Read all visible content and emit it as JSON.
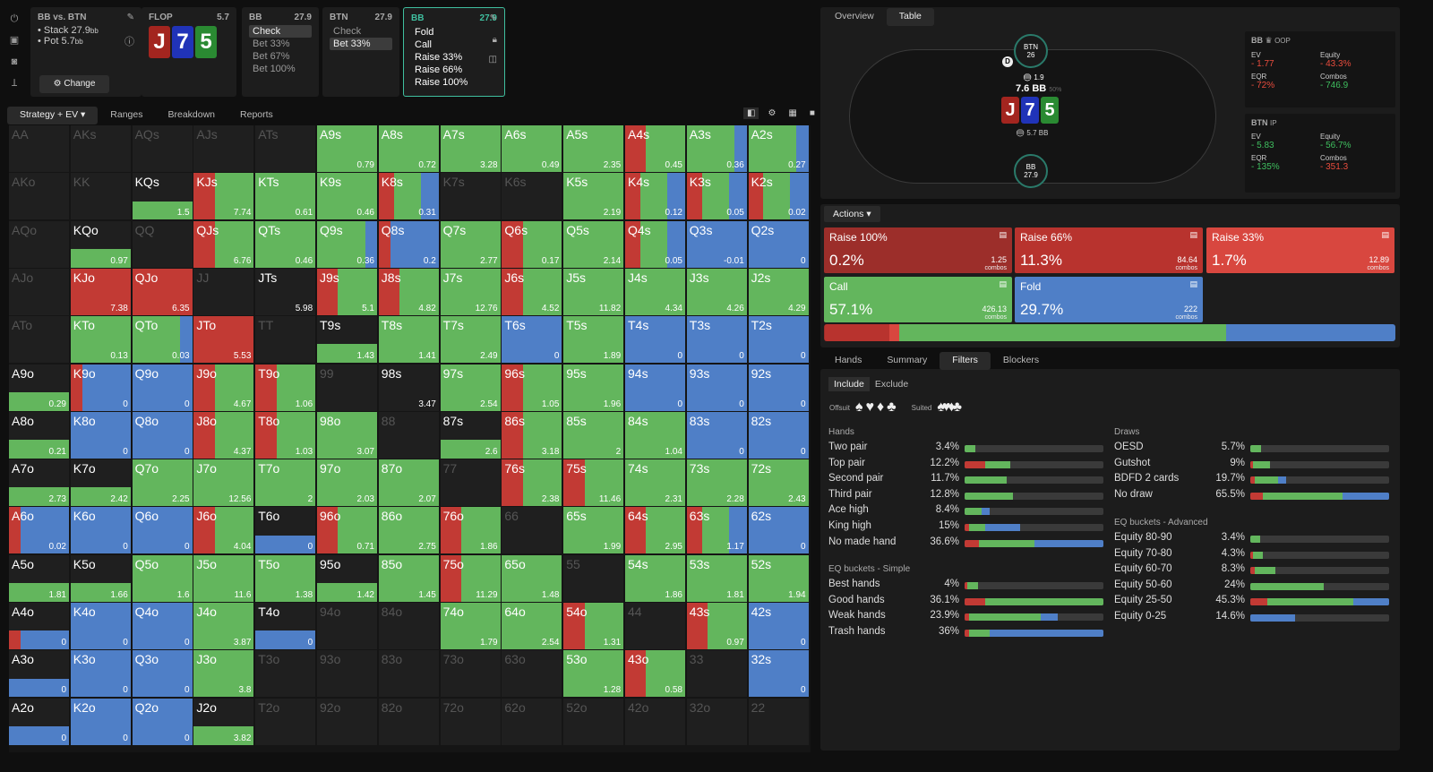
{
  "colors": {
    "raise": "#c23a34",
    "raise2": "#d8473f",
    "call": "#63b65d",
    "fold": "#4f7fc7",
    "check": "#63b65d"
  },
  "sidebar": {
    "icons": [
      "power-icon",
      "save-icon",
      "gamepad-icon",
      "text-icon"
    ]
  },
  "spot": {
    "title": "BB vs. BTN",
    "stack": "Stack 27.9",
    "pot": "Pot 5.7",
    "unit": "bb",
    "change": "Change"
  },
  "flop": {
    "label": "FLOP",
    "value": "5.7",
    "cards": [
      {
        "rank": "J",
        "suit": "red"
      },
      {
        "rank": "7",
        "suit": "blue"
      },
      {
        "rank": "5",
        "suit": "green"
      }
    ]
  },
  "nodes": [
    {
      "player": "BB",
      "stack": "27.9",
      "options": [
        "Check",
        "Bet 33%",
        "Bet 67%",
        "Bet 100%"
      ],
      "selected": 0
    },
    {
      "player": "BTN",
      "stack": "27.9",
      "options": [
        "Check",
        "Bet 33%"
      ],
      "selected": 1
    },
    {
      "player": "BB",
      "stack": "27.9",
      "options": [
        "Fold",
        "Call",
        "Raise 33%",
        "Raise 66%",
        "Raise 100%"
      ],
      "selected": -1
    }
  ],
  "left_tabs": [
    "Strategy + EV",
    "Ranges",
    "Breakdown",
    "Reports"
  ],
  "right_top_tabs": [
    "Overview",
    "Table"
  ],
  "table": {
    "btn_label": "BTN",
    "btn_stack": "26",
    "bb_label": "BB",
    "bb_stack": "27.9",
    "bet_btn": "1.9",
    "pot": "7.6 BB",
    "pot_pct": "50%",
    "bb_bet": "5.7 BB",
    "dealer": "D"
  },
  "stats": [
    {
      "title": "BB",
      "pos": "OOP",
      "ev_k": "EV",
      "ev": "- 1.77",
      "eq_k": "Equity",
      "eq": "- 43.3%",
      "eqr_k": "EQR",
      "eqr": "- 72%",
      "co_k": "Combos",
      "co": "- 746.9",
      "ev_c": "neg",
      "eq_c": "neg",
      "eqr_c": "neg",
      "co_c": "pos"
    },
    {
      "title": "BTN",
      "pos": "IP",
      "ev_k": "EV",
      "ev": "- 5.83",
      "eq_k": "Equity",
      "eq": "- 56.7%",
      "eqr_k": "EQR",
      "eqr": "- 135%",
      "co_k": "Combos",
      "co": "- 351.3",
      "ev_c": "pos",
      "eq_c": "pos",
      "eqr_c": "pos",
      "co_c": "neg"
    }
  ],
  "actions_label": "Actions",
  "actions": [
    {
      "name": "Raise 100%",
      "pct": "0.2%",
      "combos": "1.25",
      "combos_lbl": "combos",
      "color": "#9c2e2a"
    },
    {
      "name": "Raise 66%",
      "pct": "11.3%",
      "combos": "84.64",
      "combos_lbl": "combos",
      "color": "#b8332e"
    },
    {
      "name": "Raise 33%",
      "pct": "1.7%",
      "combos": "12.89",
      "combos_lbl": "combos",
      "color": "#d8473f"
    },
    {
      "name": "Call",
      "pct": "57.1%",
      "combos": "426.13",
      "combos_lbl": "combos",
      "color": "#63b65d"
    },
    {
      "name": "Fold",
      "pct": "29.7%",
      "combos": "222",
      "combos_lbl": "combos",
      "color": "#4f7fc7"
    }
  ],
  "freq_bar": [
    0.002,
    0.113,
    0.017,
    0.571,
    0.297
  ],
  "bottom_tabs": [
    "Hands",
    "Summary",
    "Filters",
    "Blockers"
  ],
  "filter": {
    "include": "Include",
    "exclude": "Exclude",
    "offsuit": "Offsuit",
    "suited": "Suited",
    "offsuit_icons": "♠♥♦♣",
    "suited_icons": "♠♥♦♣"
  },
  "hands_section": {
    "title": "Hands",
    "rows": [
      {
        "name": "Two pair",
        "pct": "3.4%",
        "parts": [
          0,
          0.08,
          0
        ]
      },
      {
        "name": "Top pair",
        "pct": "12.2%",
        "parts": [
          0.15,
          0.18,
          0
        ]
      },
      {
        "name": "Second pair",
        "pct": "11.7%",
        "parts": [
          0,
          0.3,
          0
        ]
      },
      {
        "name": "Third pair",
        "pct": "12.8%",
        "parts": [
          0,
          0.35,
          0
        ]
      },
      {
        "name": "Ace high",
        "pct": "8.4%",
        "parts": [
          0,
          0.12,
          0.06
        ]
      },
      {
        "name": "King high",
        "pct": "15%",
        "parts": [
          0.03,
          0.12,
          0.25
        ]
      },
      {
        "name": "No made hand",
        "pct": "36.6%",
        "parts": [
          0.1,
          0.4,
          0.5
        ]
      }
    ]
  },
  "eq_simple": {
    "title": "EQ buckets - Simple",
    "rows": [
      {
        "name": "Best hands",
        "pct": "4%",
        "parts": [
          0.02,
          0.08,
          0
        ]
      },
      {
        "name": "Good hands",
        "pct": "36.1%",
        "parts": [
          0.15,
          0.85,
          0
        ]
      },
      {
        "name": "Weak hands",
        "pct": "23.9%",
        "parts": [
          0.03,
          0.52,
          0.12
        ]
      },
      {
        "name": "Trash hands",
        "pct": "36%",
        "parts": [
          0.03,
          0.15,
          0.82
        ]
      }
    ]
  },
  "draws": {
    "title": "Draws",
    "rows": [
      {
        "name": "OESD",
        "pct": "5.7%",
        "parts": [
          0,
          0.08,
          0
        ]
      },
      {
        "name": "Gutshot",
        "pct": "9%",
        "parts": [
          0.02,
          0.12,
          0
        ]
      },
      {
        "name": "BDFD 2 cards",
        "pct": "19.7%",
        "parts": [
          0.03,
          0.17,
          0.06
        ]
      },
      {
        "name": "No draw",
        "pct": "65.5%",
        "parts": [
          0.1,
          0.63,
          0.37
        ]
      }
    ]
  },
  "eq_adv": {
    "title": "EQ buckets - Advanced",
    "rows": [
      {
        "name": "Equity 80-90",
        "pct": "3.4%",
        "parts": [
          0,
          0.07,
          0
        ]
      },
      {
        "name": "Equity 70-80",
        "pct": "4.3%",
        "parts": [
          0.02,
          0.07,
          0
        ]
      },
      {
        "name": "Equity 60-70",
        "pct": "8.3%",
        "parts": [
          0.03,
          0.15,
          0
        ]
      },
      {
        "name": "Equity 50-60",
        "pct": "24%",
        "parts": [
          0,
          0.53,
          0
        ]
      },
      {
        "name": "Equity 25-50",
        "pct": "45.3%",
        "parts": [
          0.12,
          0.62,
          0.26
        ]
      },
      {
        "name": "Equity 0-25",
        "pct": "14.6%",
        "parts": [
          0,
          0,
          0.32
        ]
      }
    ]
  },
  "grid": [
    "AA||,AKs||,AQs||,AJs||,ATs||,A9s|0.79|c,A8s|0.72|c,A7s|3.28|c,A6s|0.49|c,A5s|2.35|c,A4s|0.45|rc,A3s|0.36|cf,A2s|0.27|cf",
    "AKo||,KK||,KQs|1.5|c0,KJs|7.74|rc,KTs|0.61|c,K9s|0.46|c,K8s|0.31|rcf,K7s||,K6s||,K5s|2.19|c,K4s|0.12|rcf,K3s|0.05|rcf,K2s|0.02|rcf",
    "AQo||,KQo|0.97|c0,QQ||,QJs|6.76|rc,QTs|0.46|c,Q9s|0.36|cf,Q8s|0.2|rf,Q7s|2.77|c,Q6s|0.17|rc,Q5s|2.14|c,Q4s|0.05|rcf,Q3s|-0.01|f,Q2s|0|f",
    "AJo||,KJo|7.38|r,QJo|6.35|r,JJ||,JTs|5.98|w,J9s|5.1|rc,J8s|4.82|rc,J7s|12.76|c,J6s|4.52|rc,J5s|11.82|c,J4s|4.34|c,J3s|4.26|c,J2s|4.29|c",
    "ATo||,KTo|0.13|c,QTo|0.03|cf,JTo|5.53|r,TT||,T9s|1.43|c0,T8s|1.41|c,T7s|2.49|c,T6s|0|f,T5s|1.89|c,T4s|0|f,T3s|0|f,T2s|0|f",
    "A9o|0.29|c0,K9o|0|rf,Q9o|0|f,J9o|4.67|rc,T9o|1.06|rc,99||,98s|3.47|w,97s|2.54|c,96s|1.05|rc,95s|1.96|c,94s|0|f,93s|0|f,92s|0|f",
    "A8o|0.21|c0,K8o|0|f,Q8o|0|f,J8o|4.37|rc,T8o|1.03|rc,98o|3.07|c,88||,87s|2.6|c0,86s|3.18|rc,85s|2|c,84s|1.04|c,83s|0|f,82s|0|f",
    "A7o|2.73|c0,K7o|2.42|c0,Q7o|2.25|c,J7o|12.56|c,T7o|2|c,97o|2.03|c,87o|2.07|c,77||,76s|2.38|rc,75s|11.46|rc,74s|2.31|c,73s|2.28|c,72s|2.43|c",
    "A6o|0.02|rf,K6o|0|f,Q6o|0|f,J6o|4.04|rc,T6o|0|f0,96o|0.71|rc,86o|2.75|c,76o|1.86|rc,66||,65s|1.99|c,64s|2.95|rc,63s|1.17|rcf,62s|0|f",
    "A5o|1.81|c0,K5o|1.66|c0,Q5o|1.6|c,J5o|11.6|c,T5o|1.38|c,95o|1.42|c0,85o|1.45|c,75o|11.29|rc,65o|1.48|c,55||,54s|1.86|c,53s|1.81|c,52s|1.94|c",
    "A4o|0|rf0,K4o|0|f,Q4o|0|f,J4o|3.87|c,T4o|0|f0,94o||,84o||,74o|1.79|c,64o|2.54|c,54o|1.31|rc,44||,43s|0.97|rc,42s|0|f",
    "A3o|0|f0,K3o|0|f,Q3o|0|f,J3o|3.8|c,T3o||,93o||,83o||,73o||,63o||,53o|1.28|c,43o|0.58|rc,33||,32s|0|f",
    "A2o|0|f0,K2o|0|f,Q2o|0|f,J2o|3.82|c0,T2o||,92o||,82o||,72o||,62o||,52o||,42o||,32o||,22||"
  ]
}
